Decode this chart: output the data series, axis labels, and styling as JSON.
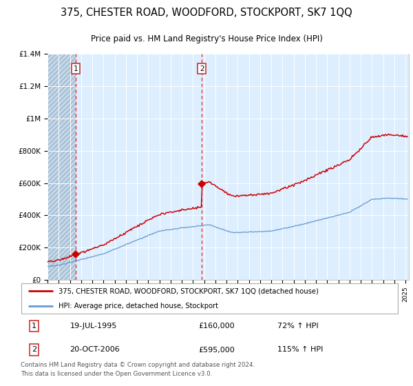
{
  "title": "375, CHESTER ROAD, WOODFORD, STOCKPORT, SK7 1QQ",
  "subtitle": "Price paid vs. HM Land Registry's House Price Index (HPI)",
  "legend_line1": "375, CHESTER ROAD, WOODFORD, STOCKPORT, SK7 1QQ (detached house)",
  "legend_line2": "HPI: Average price, detached house, Stockport",
  "footnote": "Contains HM Land Registry data © Crown copyright and database right 2024.\nThis data is licensed under the Open Government Licence v3.0.",
  "sale1_date": "19-JUL-1995",
  "sale1_price": "£160,000",
  "sale1_hpi": "72% ↑ HPI",
  "sale2_date": "20-OCT-2006",
  "sale2_price": "£595,000",
  "sale2_hpi": "115% ↑ HPI",
  "red_color": "#cc0000",
  "blue_color": "#6699cc",
  "bg_color": "#ddeeff",
  "grid_color": "#ffffff",
  "dashed_line_color": "#dd2222",
  "ylim": [
    0,
    1400000
  ],
  "yticks": [
    0,
    200000,
    400000,
    600000,
    800000,
    1000000,
    1200000,
    1400000
  ],
  "ytick_labels": [
    "£0",
    "£200K",
    "£400K",
    "£600K",
    "£800K",
    "£1M",
    "£1.2M",
    "£1.4M"
  ],
  "sale1_x": 1995.54,
  "sale1_y": 160000,
  "sale2_x": 2006.79,
  "sale2_y": 595000,
  "xmin": 1993.0,
  "xmax": 2025.3
}
